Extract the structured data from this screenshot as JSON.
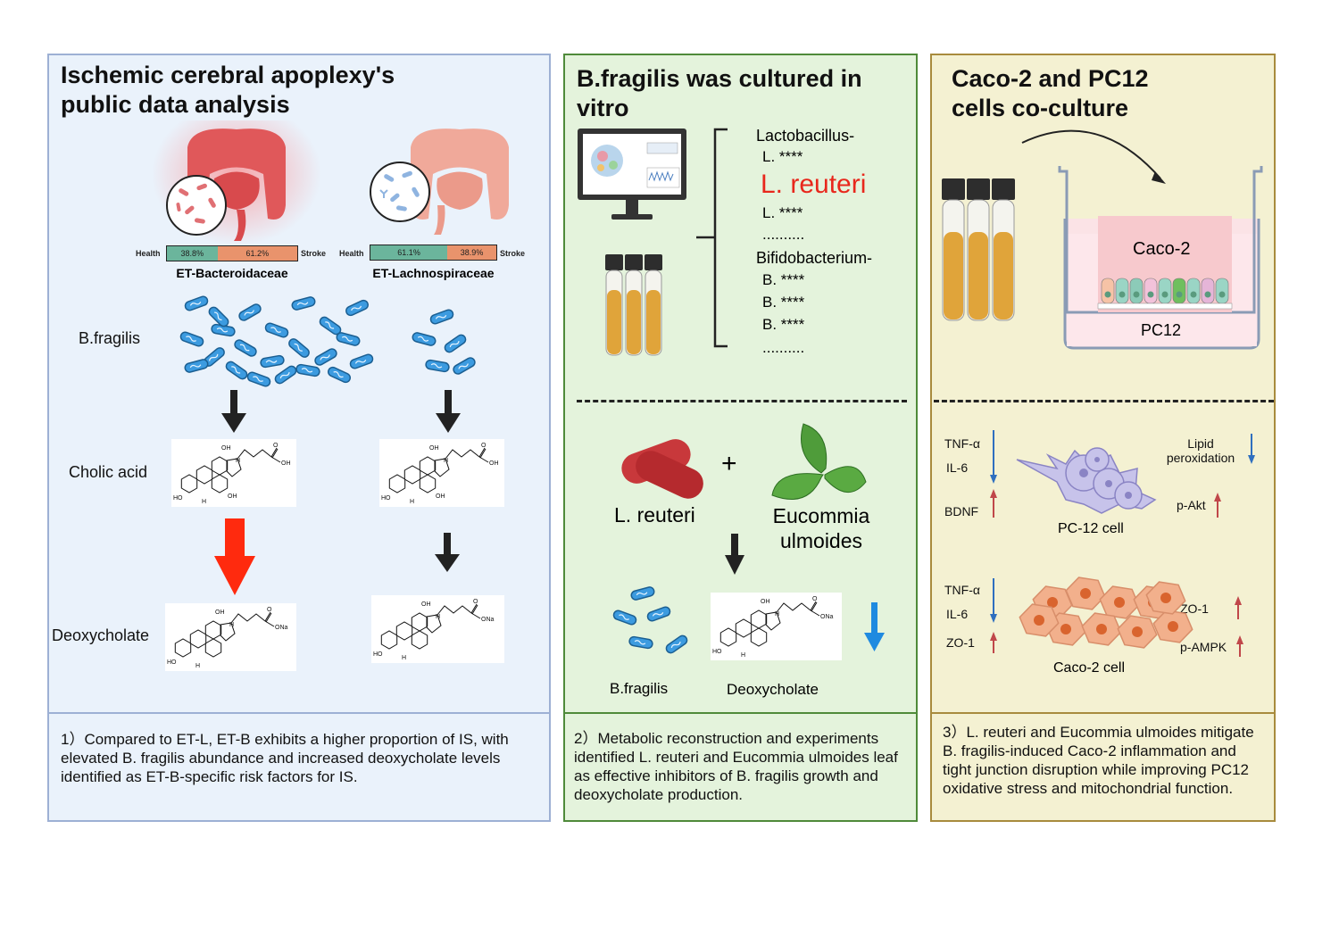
{
  "panel1": {
    "title": "Ischemic cerebral apoplexy's\npublic data analysis",
    "left_bar": {
      "left_label": "Health",
      "right_label": "Stroke",
      "health_pct": "38.8%",
      "stroke_pct": "61.2%",
      "health_frac": 0.388,
      "name": "ET-Bacteroidaceae"
    },
    "right_bar": {
      "left_label": "Health",
      "right_label": "Stroke",
      "health_pct": "61.1%",
      "stroke_pct": "38.9%",
      "health_frac": 0.611,
      "name": "ET-Lachnospiraceae"
    },
    "row_labels": {
      "bacteria": "B.fragilis",
      "cholic": "Cholic acid",
      "deoxy": "Deoxycholate"
    },
    "caption": "1）Compared to ET-L, ET-B exhibits a higher proportion of IS, with elevated B. fragilis abundance and increased deoxycholate levels identified as ET-B-specific risk factors for IS."
  },
  "panel2": {
    "title": "B.fragilis was cultured in\nvitro",
    "list": {
      "genus1": "Lactobacillus-",
      "l1": "L. ****",
      "highlight": "L. reuteri",
      "l2": "L. ****",
      "dots1": "..........",
      "genus2": "Bifidobacterium-",
      "b1": "B. ****",
      "b2": "B. ****",
      "b3": "B. ****",
      "dots2": ".........."
    },
    "plus": "+",
    "lreuteri": "L. reuteri",
    "eucommia": "Eucommia\nulmoides",
    "bfragilis": "B.fragilis",
    "deoxy": "Deoxycholate",
    "caption": "2）Metabolic reconstruction and experiments identified L. reuteri and Eucommia ulmoides leaf as effective inhibitors of B. fragilis growth and deoxycholate production."
  },
  "panel3": {
    "title": "Caco-2 and PC12\ncells co-culture",
    "caco2": "Caco-2",
    "pc12": "PC12",
    "pc12_left": [
      "TNF-α",
      "IL-6",
      "BDNF"
    ],
    "pc12_right": [
      "Lipid\nperoxidation",
      "p-Akt"
    ],
    "pc12_cell": "PC-12 cell",
    "caco_left": [
      "TNF-α",
      "IL-6",
      "ZO-1"
    ],
    "caco_right": [
      "ZO-1",
      "p-AMPK"
    ],
    "caco_cell": "Caco-2 cell",
    "caption": "3）L. reuteri and Eucommia ulmoides mitigate B. fragilis-induced Caco-2 inflammation and tight junction disruption while improving PC12 oxidative stress and mitochondrial function."
  },
  "chem": {
    "oh": "OH",
    "h": "H",
    "ho": "HO",
    "ona": "ONa",
    "o": "O"
  },
  "colors": {
    "health": "#6bb59c",
    "stroke": "#e9936c",
    "red_arrow": "#ff2a0e",
    "blue_arrow": "#1f8ae0",
    "up_red": "#c0474a",
    "down_blue": "#2f6fbf"
  }
}
